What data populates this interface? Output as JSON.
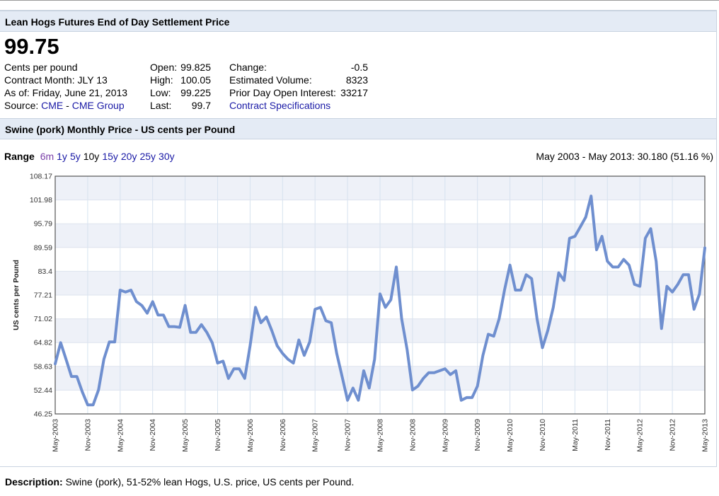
{
  "header": {
    "title": "Lean Hogs Futures End of Day Settlement Price"
  },
  "quote": {
    "price": "99.75",
    "unit": "Cents per pound",
    "contract_month": "Contract Month: JLY 13",
    "as_of": "As of: Friday, June 21, 2013",
    "source_label": "Source:",
    "source_link1": "CME",
    "source_sep": " - ",
    "source_link2": "CME Group",
    "open_label": "Open:",
    "open_value": "99.825",
    "high_label": "High:",
    "high_value": "100.05",
    "low_label": "Low:",
    "low_value": "99.225",
    "last_label": "Last:",
    "last_value": "99.7",
    "change_label": "Change:",
    "change_value": "-0.5",
    "volume_label": "Estimated Volume:",
    "volume_value": "8323",
    "oi_label": "Prior Day Open Interest:",
    "oi_value": "33217",
    "specs_link": "Contract Specifications"
  },
  "section2": {
    "title": "Swine (pork) Monthly Price - US cents per Pound"
  },
  "range": {
    "label": "Range",
    "options": [
      "6m",
      "1y",
      "5y",
      "10y",
      "15y",
      "20y",
      "25y",
      "30y"
    ],
    "selected": "10y",
    "summary": "May 2003 - May 2013: 30.180 (51.16 %)"
  },
  "colors": {
    "line": "#6f8fcf",
    "band": "#eef1f8",
    "link": "#1a1aa6",
    "header_bg": "#e4ebf5"
  },
  "chart_data": {
    "type": "line",
    "title": "",
    "xlabel": "",
    "ylabel": "US cents per Pound",
    "ylim": [
      46.25,
      108.17
    ],
    "yticks": [
      "108.17",
      "101.98",
      "95.79",
      "89.59",
      "83.4",
      "77.21",
      "71.02",
      "64.82",
      "58.63",
      "52.44",
      "46.25"
    ],
    "xticks": [
      "May-2003",
      "Nov-2003",
      "May-2004",
      "Nov-2004",
      "May-2005",
      "Nov-2005",
      "May-2006",
      "Nov-2006",
      "May-2007",
      "Nov-2007",
      "May-2008",
      "Nov-2008",
      "May-2009",
      "Nov-2009",
      "May-2010",
      "Nov-2010",
      "May-2011",
      "Nov-2011",
      "May-2012",
      "Nov-2012",
      "May-2013"
    ],
    "x_start": "May-2003",
    "x_end": "May-2013",
    "grid": true,
    "series": [
      {
        "name": "",
        "values": [
          59.3,
          64.8,
          60.5,
          56.0,
          56.0,
          52.0,
          48.6,
          48.6,
          52.5,
          60.5,
          65.0,
          65.0,
          78.5,
          78.0,
          78.5,
          75.5,
          74.5,
          72.5,
          75.5,
          72.0,
          72.0,
          69.0,
          69.0,
          68.8,
          74.5,
          67.5,
          67.5,
          69.5,
          67.5,
          64.8,
          59.5,
          60.0,
          55.5,
          58.0,
          58.0,
          55.5,
          64.0,
          74.0,
          70.0,
          71.5,
          68.0,
          64.0,
          62.0,
          60.5,
          59.5,
          65.5,
          61.5,
          65.0,
          73.5,
          74.0,
          70.5,
          70.0,
          62.0,
          56.0,
          49.8,
          53.0,
          49.8,
          57.5,
          53.0,
          60.5,
          77.5,
          74.0,
          76.0,
          84.5,
          71.0,
          63.0,
          52.5,
          53.5,
          55.5,
          57.0,
          57.0,
          57.5,
          58.0,
          56.5,
          57.5,
          49.8,
          50.5,
          50.5,
          53.5,
          61.5,
          67.0,
          66.5,
          71.0,
          78.5,
          85.0,
          78.5,
          78.5,
          82.5,
          81.5,
          71.0,
          63.5,
          68.0,
          74.0,
          83.0,
          81.0,
          92.0,
          92.5,
          95.0,
          97.5,
          103.0,
          89.0,
          92.5,
          86.0,
          84.5,
          84.5,
          86.5,
          85.0,
          80.0,
          79.5,
          92.0,
          94.5,
          86.0,
          68.5,
          79.5,
          78.0,
          80.0,
          82.5,
          82.5,
          73.5,
          77.5,
          89.5
        ]
      }
    ]
  },
  "description": {
    "label": "Description:",
    "text": " Swine (pork), 51-52% lean Hogs, U.S. price, US cents per Pound."
  }
}
